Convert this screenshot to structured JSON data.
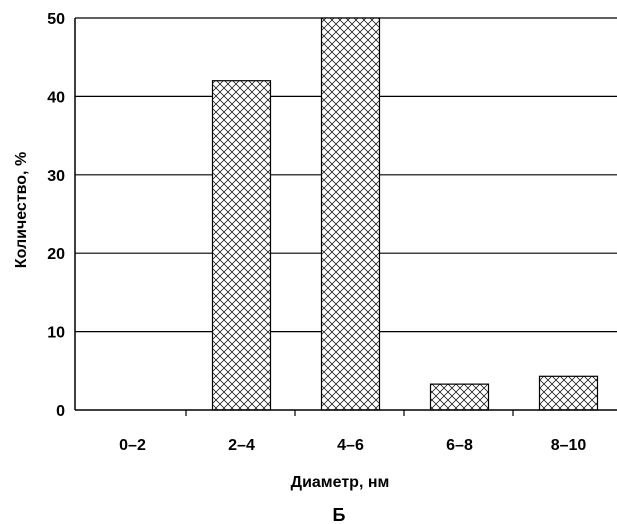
{
  "chart_data": {
    "type": "bar",
    "categories": [
      "0–2",
      "2–4",
      "4–6",
      "6–8",
      "8–10"
    ],
    "values": [
      0,
      42,
      50,
      3.3,
      4.3
    ],
    "xlabel": "Диаметр, нм",
    "ylabel": "Количество, %",
    "ylim": [
      0,
      50
    ],
    "yticks": [
      0,
      10,
      20,
      30,
      40,
      50
    ],
    "grid": true,
    "fill_pattern": "crosshatch",
    "bar_color": "#000000",
    "panel_label": "Б"
  }
}
